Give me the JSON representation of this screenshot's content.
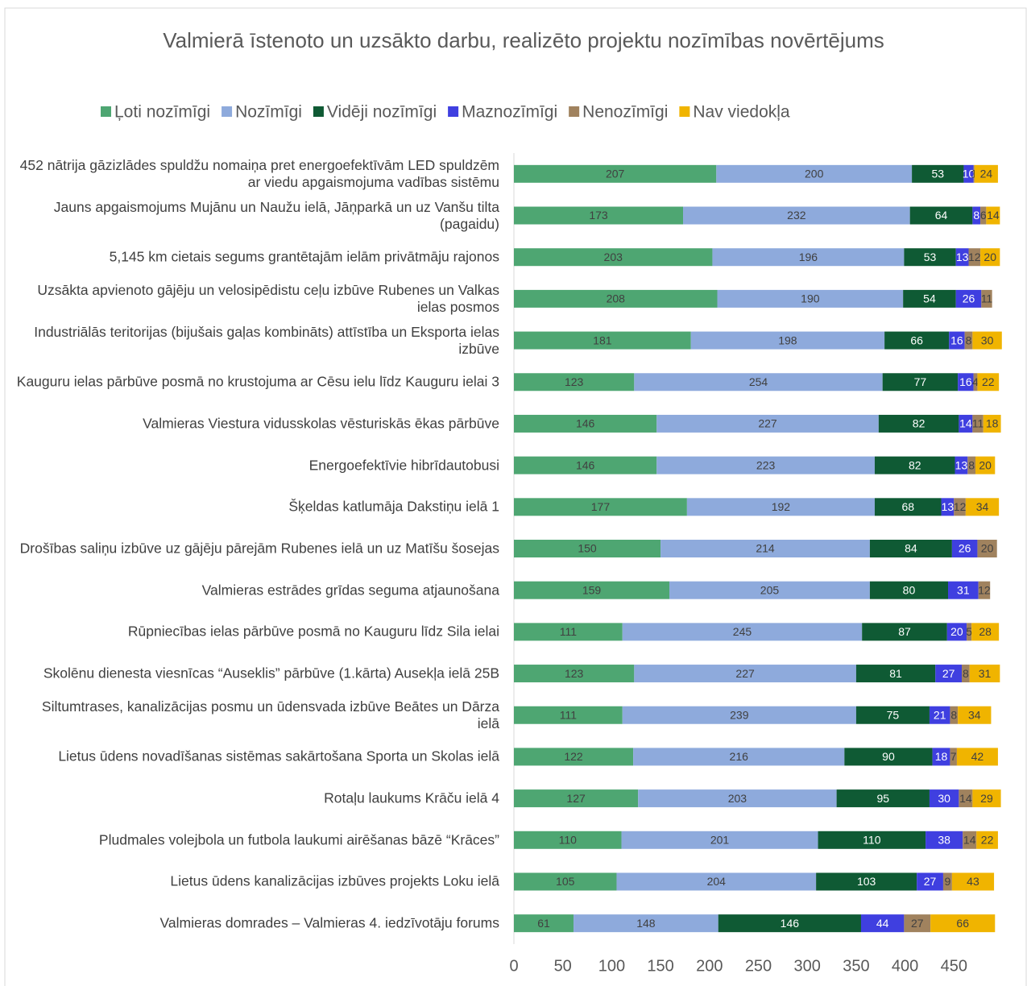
{
  "chart_data": {
    "type": "stacked_barh",
    "title": "Valmierā īstenoto un uzsākto darbu, realizēto projektu nozīmības novērtējums",
    "categories": [
      "452 nātrija gāzizlādes spuldžu nomaiņa pret energoefektīvām LED spuldzēm ar viedu apgaismojuma vadības sistēmu",
      "Jauns apgaismojums Mujānu un Naužu ielā, Jāņparkā un uz Vanšu tilta (pagaidu)",
      "5,145 km cietais segums grantētajām ielām privātmāju rajonos",
      "Uzsākta apvienoto gājēju un velosipēdistu ceļu izbūve Rubenes un Valkas ielas posmos",
      "Industriālās teritorijas (bijušais gaļas kombināts) attīstība un Eksporta ielas izbūve",
      "Kauguru ielas pārbūve posmā no krustojuma ar Cēsu ielu līdz Kauguru ielai 3",
      "Valmieras Viestura vidusskolas vēsturiskās ēkas pārbūve",
      "Energoefektīvie hibrīdautobusi",
      "Šķeldas  katlumāja Dakstiņu ielā 1",
      "Drošības saliņu izbūve uz gājēju pārejām Rubenes ielā un uz Matīšu šosejas",
      "Valmieras estrādes grīdas seguma atjaunošana",
      "Rūpniecības ielas pārbūve posmā no Kauguru līdz Sila ielai",
      "Skolēnu dienesta viesnīcas “Auseklis” pārbūve (1.kārta) Ausekļa ielā 25B",
      "Siltumtrases, kanalizācijas posmu un ūdensvada izbūve Beātes un Dārza ielā",
      "Lietus ūdens novadīšanas sistēmas sakārtošana Sporta un Skolas ielā",
      "Rotaļu laukums Krāču ielā 4",
      "Pludmales volejbola un futbola laukumi airēšanas bāzē “Krāces”",
      "Lietus ūdens kanalizācijas izbūves projekts Loku ielā",
      "Valmieras domrades – Valmieras 4. iedzīvotāju forums"
    ],
    "series": [
      {
        "name": "Ļoti nozīmīgi",
        "color": "#4ea672",
        "values": [
          207,
          173,
          203,
          208,
          181,
          123,
          146,
          146,
          177,
          150,
          159,
          111,
          123,
          111,
          122,
          127,
          110,
          105,
          61
        ]
      },
      {
        "name": "Nozīmīgi",
        "color": "#8eaadc",
        "values": [
          200,
          232,
          196,
          190,
          198,
          254,
          227,
          223,
          192,
          214,
          205,
          245,
          227,
          239,
          216,
          203,
          201,
          204,
          148
        ]
      },
      {
        "name": "Vidēji nozīmīgi",
        "color": "#0f5a34",
        "values": [
          53,
          64,
          53,
          54,
          66,
          77,
          82,
          82,
          68,
          84,
          80,
          87,
          81,
          75,
          90,
          95,
          110,
          103,
          146
        ]
      },
      {
        "name": "Maznozīmīgi",
        "color": "#3f3fe0",
        "values": [
          10,
          8,
          13,
          26,
          16,
          16,
          14,
          13,
          13,
          26,
          31,
          20,
          27,
          21,
          18,
          30,
          38,
          27,
          44
        ]
      },
      {
        "name": "Nenozīmīgi",
        "color": "#a0825e",
        "values": [
          1,
          6,
          12,
          11,
          8,
          4,
          11,
          8,
          12,
          20,
          12,
          5,
          8,
          8,
          7,
          14,
          14,
          9,
          27
        ]
      },
      {
        "name": "Nav viedokļa",
        "color": "#f0b400",
        "values": [
          24,
          14,
          20,
          null,
          30,
          22,
          18,
          20,
          34,
          null,
          null,
          28,
          31,
          34,
          42,
          29,
          22,
          43,
          66
        ]
      }
    ],
    "xlim": [
      0,
      500
    ],
    "xticks": [
      0,
      50,
      100,
      150,
      200,
      250,
      300,
      350,
      400,
      450
    ]
  }
}
